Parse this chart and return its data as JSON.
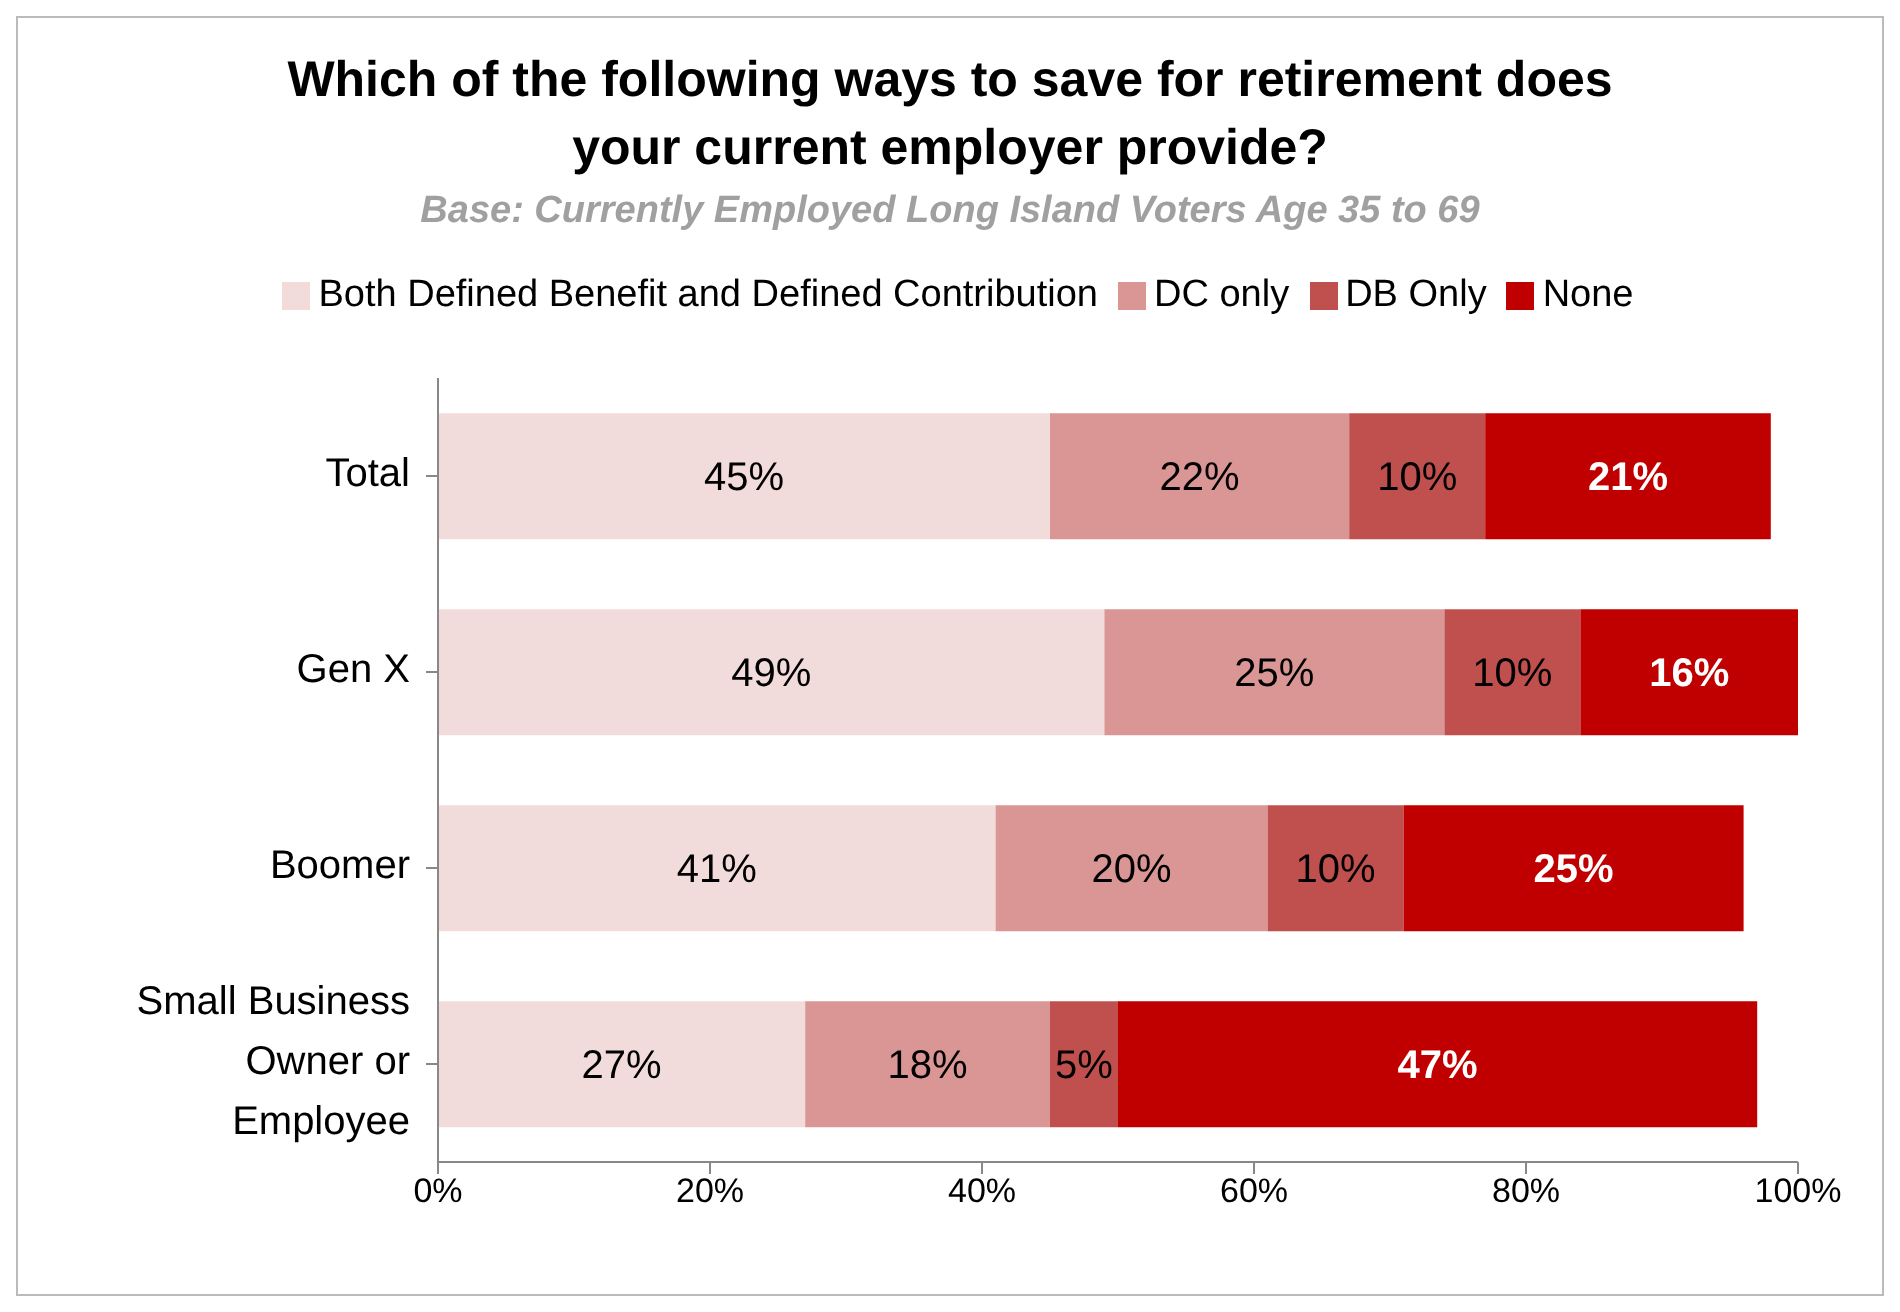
{
  "chart_data": {
    "type": "bar",
    "orientation": "horizontal",
    "stacked": true,
    "title": "Which of the following ways to save for retirement does your current employer provide?",
    "subtitle": "Base: Currently Employed Long Island Voters Age 35 to 69",
    "categories": [
      "Total",
      "Gen X",
      "Boomer",
      "Small Business Owner or Employee"
    ],
    "series": [
      {
        "name": "Both Defined Benefit and Defined Contribution",
        "color": "#f2dcdb",
        "values": [
          45,
          49,
          41,
          27
        ],
        "value_labels": [
          "45%",
          "49%",
          "41%",
          "27%"
        ]
      },
      {
        "name": "DC only",
        "color": "#d99694",
        "values": [
          22,
          25,
          20,
          18
        ],
        "value_labels": [
          "22%",
          "25%",
          "20%",
          "18%"
        ]
      },
      {
        "name": "DB Only",
        "color": "#c0504d",
        "values": [
          10,
          10,
          10,
          5
        ],
        "value_labels": [
          "10%",
          "10%",
          "10%",
          "5%"
        ]
      },
      {
        "name": "None",
        "color": "#c00000",
        "values": [
          21,
          16,
          25,
          47
        ],
        "value_labels": [
          "21%",
          "16%",
          "25%",
          "47%"
        ]
      }
    ],
    "xlim": [
      0,
      100
    ],
    "xticks": [
      {
        "value": 0,
        "label": "0%"
      },
      {
        "value": 20,
        "label": "20%"
      },
      {
        "value": 40,
        "label": "40%"
      },
      {
        "value": 60,
        "label": "60%"
      },
      {
        "value": 80,
        "label": "80%"
      },
      {
        "value": 100,
        "label": "100%"
      }
    ],
    "grid": false,
    "legend": "top"
  }
}
